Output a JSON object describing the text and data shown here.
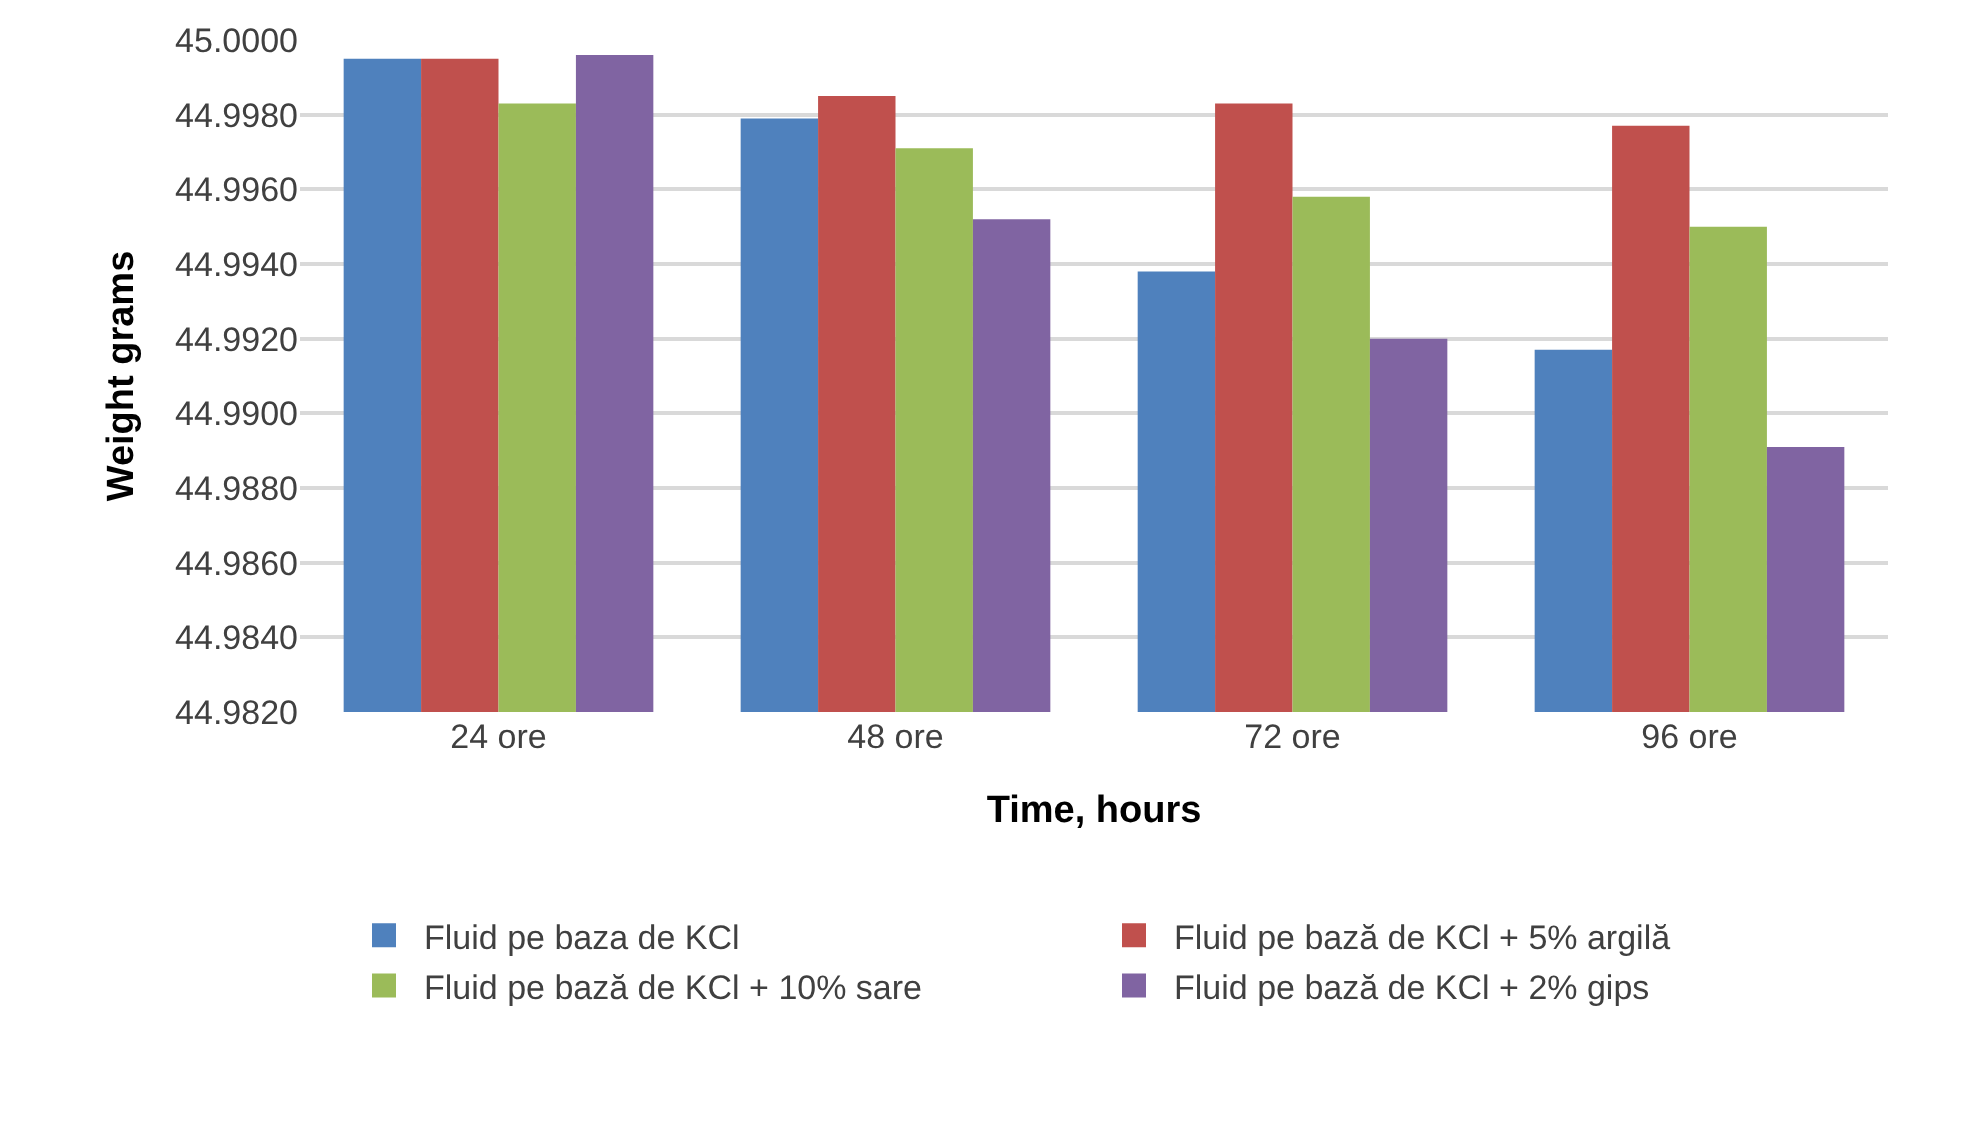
{
  "chart_data": {
    "type": "bar",
    "xlabel": "Time, hours",
    "ylabel": "Weight grams",
    "categories": [
      "24 ore",
      "48 ore",
      "72 ore",
      "96 ore"
    ],
    "series": [
      {
        "name": "Fluid pe baza de KCl",
        "color": "#4f81bd",
        "values": [
          44.9995,
          44.9979,
          44.9938,
          44.9917
        ]
      },
      {
        "name": "Fluid pe bază de KCl + 5% argilă",
        "color": "#c0504d",
        "values": [
          44.9995,
          44.9985,
          44.9983,
          44.9977
        ]
      },
      {
        "name": "Fluid pe bază de KCl + 10% sare",
        "color": "#9bbb59",
        "values": [
          44.9983,
          44.9971,
          44.9958,
          44.995
        ]
      },
      {
        "name": "Fluid pe bază de KCl + 2% gips",
        "color": "#8064a2",
        "values": [
          44.9996,
          44.9952,
          44.992,
          44.9891
        ]
      }
    ],
    "ylim": [
      44.982,
      45.0
    ],
    "yticks": [
      {
        "value": 44.982,
        "label": "44.9820"
      },
      {
        "value": 44.984,
        "label": "44.9840"
      },
      {
        "value": 44.986,
        "label": "44.9860"
      },
      {
        "value": 44.988,
        "label": "44.9880"
      },
      {
        "value": 44.99,
        "label": "44.9900"
      },
      {
        "value": 44.992,
        "label": "44.9920"
      },
      {
        "value": 44.994,
        "label": "44.9940"
      },
      {
        "value": 44.996,
        "label": "44.9960"
      },
      {
        "value": 44.998,
        "label": "44.9980"
      },
      {
        "value": 45.0,
        "label": "45.0000"
      }
    ],
    "grid": "y",
    "legend": "bottom"
  }
}
